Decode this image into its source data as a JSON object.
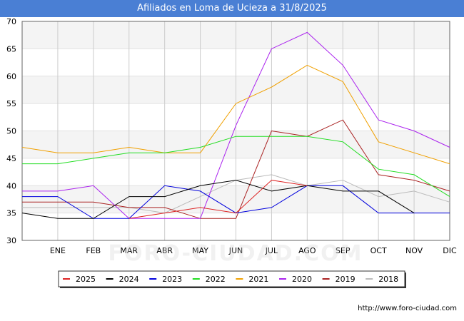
{
  "header": {
    "title": "Afiliados en Loma de Ucieza a 31/8/2025"
  },
  "footer": {
    "url": "http://www.foro-ciudad.com"
  },
  "watermark": "FORO-CIUDAD.COM",
  "chart_data": {
    "type": "line",
    "title": "Afiliados en Loma de Ucieza a 31/8/2025",
    "categories": [
      "",
      "ENE",
      "FEB",
      "MAR",
      "ABR",
      "MAY",
      "JUN",
      "JUL",
      "AGO",
      "SEP",
      "OCT",
      "NOV",
      "DIC"
    ],
    "ylim": [
      30,
      70
    ],
    "yticks": [
      30,
      35,
      40,
      45,
      50,
      55,
      60,
      65,
      70
    ],
    "grid": true,
    "legend": "bottom",
    "series": [
      {
        "name": "2025",
        "color": "#dd2222",
        "values": [
          null,
          null,
          null,
          34,
          35,
          36,
          35,
          41,
          40,
          null,
          null,
          null,
          null
        ]
      },
      {
        "name": "2024",
        "color": "#000000",
        "values": [
          35,
          34,
          34,
          38,
          38,
          40,
          41,
          39,
          40,
          39,
          39,
          35,
          null
        ]
      },
      {
        "name": "2023",
        "color": "#0000dd",
        "values": [
          38,
          38,
          34,
          34,
          40,
          39,
          35,
          36,
          40,
          40,
          35,
          35,
          35
        ]
      },
      {
        "name": "2022",
        "color": "#22dd22",
        "values": [
          44,
          44,
          45,
          46,
          46,
          47,
          49,
          49,
          49,
          48,
          43,
          42,
          38
        ]
      },
      {
        "name": "2021",
        "color": "#f0a000",
        "values": [
          47,
          46,
          46,
          47,
          46,
          46,
          55,
          58,
          62,
          59,
          48,
          46,
          44
        ]
      },
      {
        "name": "2020",
        "color": "#aa22ee",
        "values": [
          39,
          39,
          40,
          34,
          34,
          34,
          51,
          65,
          68,
          62,
          52,
          50,
          47
        ]
      },
      {
        "name": "2019",
        "color": "#aa2222",
        "values": [
          37,
          37,
          37,
          36,
          36,
          34,
          34,
          50,
          49,
          52,
          42,
          41,
          39
        ]
      },
      {
        "name": "2018",
        "color": "#bbbbbb",
        "values": [
          36,
          36,
          36,
          36,
          35,
          38,
          41,
          42,
          40,
          41,
          38,
          39,
          37
        ]
      }
    ]
  }
}
